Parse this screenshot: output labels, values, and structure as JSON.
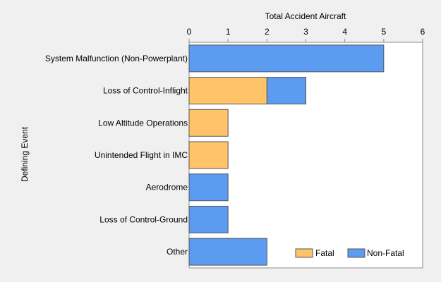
{
  "chart_data": {
    "type": "bar",
    "orientation": "horizontal",
    "stacked": true,
    "xlabel": "Total Accident Aircraft",
    "ylabel": "Defining Event",
    "xlim": [
      0,
      6
    ],
    "xticks": [
      "0",
      "1",
      "2",
      "3",
      "4",
      "5",
      "6"
    ],
    "grid": false,
    "legend_position": "bottom-right",
    "categories": [
      "System Malfunction (Non-Powerplant)",
      "Loss of Control-Inflight",
      "Low Altitude Operations",
      "Unintended Flight in IMC",
      "Aerodrome",
      "Loss of Control-Ground",
      "Other"
    ],
    "series": [
      {
        "name": "Fatal",
        "color": "#ffc469",
        "values": [
          0,
          2,
          1,
          1,
          0,
          0,
          0
        ]
      },
      {
        "name": "Non-Fatal",
        "color": "#5b9cf0",
        "values": [
          5,
          1,
          0,
          0,
          1,
          1,
          2
        ]
      }
    ]
  }
}
